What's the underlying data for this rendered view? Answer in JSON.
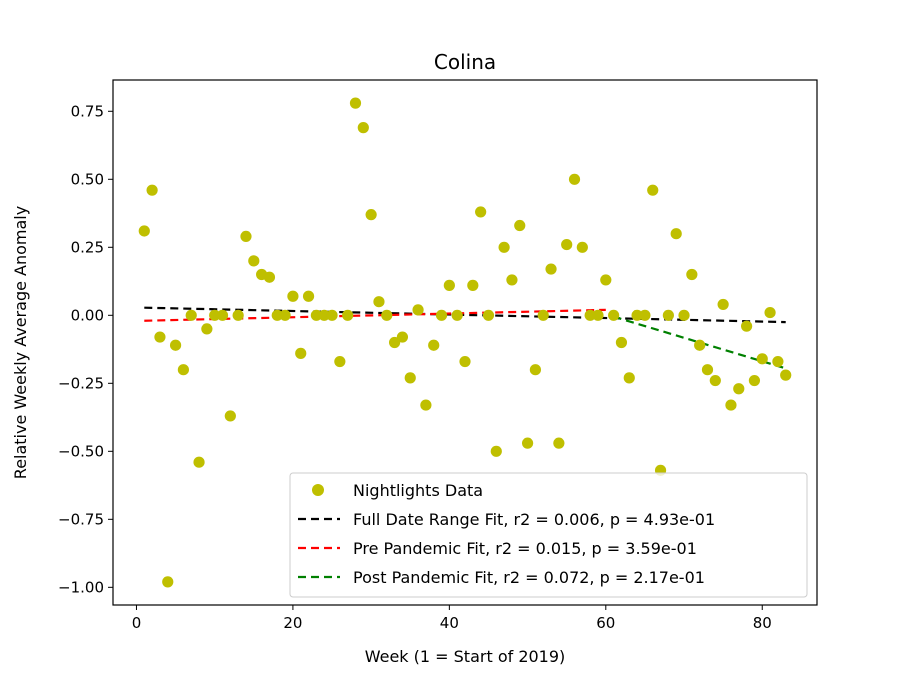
{
  "chart_data": {
    "type": "scatter",
    "title": "Colina",
    "xlabel": "Week (1 = Start of 2019)",
    "ylabel": "Relative Weekly Average Anomaly",
    "xlim": [
      -3,
      87
    ],
    "ylim": [
      -1.065,
      0.865
    ],
    "xticks": [
      0,
      20,
      40,
      60,
      80
    ],
    "yticks": [
      0.75,
      0.5,
      0.25,
      0.0,
      -0.25,
      -0.5,
      -0.75,
      -1.0
    ],
    "xtick_labels": [
      "0",
      "20",
      "40",
      "60",
      "80"
    ],
    "ytick_labels": [
      "0.75",
      "0.50",
      "0.25",
      "0.00",
      "−0.25",
      "−0.50",
      "−0.75",
      "−1.00"
    ],
    "grid": false,
    "legend_position": "lower-right",
    "series": [
      {
        "name": "Nightlights Data",
        "kind": "points",
        "color": "#bfbf00",
        "x": [
          1,
          2,
          3,
          4,
          5,
          6,
          7,
          8,
          9,
          10,
          11,
          12,
          13,
          14,
          15,
          16,
          17,
          18,
          19,
          20,
          21,
          22,
          23,
          24,
          25,
          26,
          27,
          28,
          29,
          30,
          31,
          32,
          33,
          34,
          35,
          36,
          37,
          38,
          39,
          40,
          41,
          42,
          43,
          44,
          45,
          46,
          47,
          48,
          49,
          50,
          51,
          52,
          53,
          54,
          55,
          56,
          57,
          58,
          59,
          60,
          61,
          62,
          63,
          64,
          65,
          66,
          67,
          68,
          69,
          70,
          71,
          72,
          73,
          74,
          75,
          76,
          77,
          78,
          79,
          80,
          81,
          82,
          83
        ],
        "y": [
          0.31,
          0.46,
          -0.08,
          -0.98,
          -0.11,
          -0.2,
          0.0,
          -0.54,
          -0.05,
          0.0,
          0.0,
          -0.37,
          0.0,
          0.29,
          0.2,
          0.15,
          0.14,
          0.0,
          0.0,
          0.07,
          -0.14,
          0.07,
          0.0,
          0.0,
          0.0,
          -0.17,
          0.0,
          0.78,
          0.69,
          0.37,
          0.05,
          0.0,
          -0.1,
          -0.08,
          -0.23,
          0.02,
          -0.33,
          -0.11,
          0.0,
          0.11,
          0.0,
          -0.17,
          0.11,
          0.38,
          0.0,
          -0.5,
          0.25,
          0.13,
          0.33,
          -0.47,
          -0.2,
          0.0,
          0.17,
          -0.47,
          0.26,
          0.5,
          0.25,
          0.0,
          0.0,
          0.13,
          0.0,
          -0.1,
          -0.23,
          0.0,
          0.0,
          0.46,
          -0.57,
          0.0,
          0.3,
          0.0,
          0.15,
          -0.11,
          -0.2,
          -0.24,
          0.04,
          -0.33,
          -0.27,
          -0.04,
          -0.24,
          -0.16,
          0.01,
          -0.17,
          -0.22
        ]
      },
      {
        "name": "Full Date Range Fit, r2 = 0.006, p = 4.93e-01",
        "kind": "dashed-line",
        "color": "#000000",
        "x": [
          1,
          83
        ],
        "y": [
          0.028,
          -0.025
        ]
      },
      {
        "name": "Pre Pandemic Fit, r2 = 0.015, p = 3.59e-01",
        "kind": "dashed-line",
        "color": "#ff0000",
        "x": [
          1,
          60
        ],
        "y": [
          -0.02,
          0.02
        ]
      },
      {
        "name": "Post Pandemic Fit, r2 = 0.072, p = 2.17e-01",
        "kind": "dashed-line",
        "color": "#008000",
        "x": [
          61,
          83
        ],
        "y": [
          -0.005,
          -0.195
        ]
      }
    ]
  }
}
